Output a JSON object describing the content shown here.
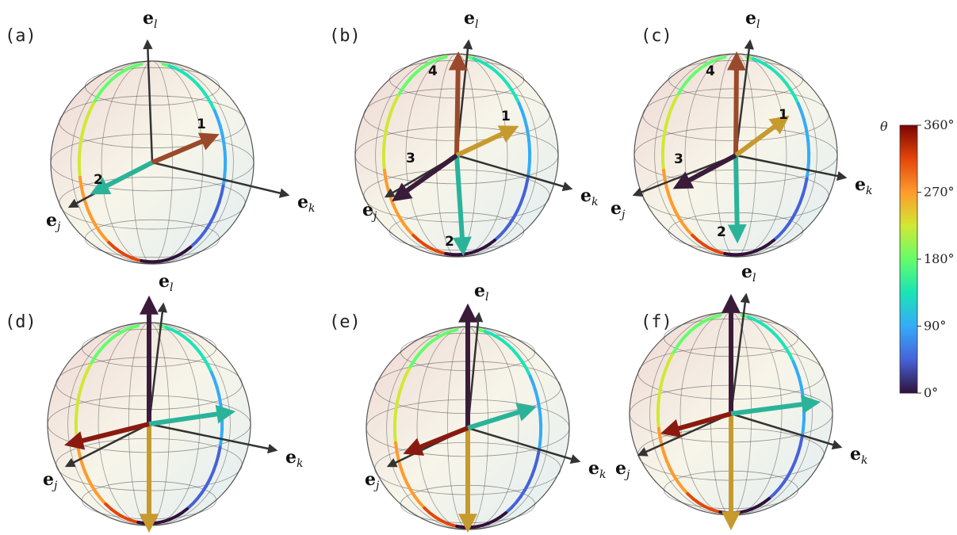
{
  "panels": [
    {
      "label": "(a)",
      "axis_l": {
        "letter": "e",
        "sub": "l"
      },
      "axis_j": {
        "letter": "e",
        "sub": "j"
      },
      "axis_k": {
        "letter": "e",
        "sub": "k"
      },
      "numbers": [
        "1",
        "2"
      ]
    },
    {
      "label": "(b)",
      "axis_l": {
        "letter": "e",
        "sub": "l"
      },
      "axis_j": {
        "letter": "e",
        "sub": "j"
      },
      "axis_k": {
        "letter": "e",
        "sub": "k"
      },
      "numbers": [
        "1",
        "2",
        "3",
        "4"
      ]
    },
    {
      "label": "(c)",
      "axis_l": {
        "letter": "e",
        "sub": "l"
      },
      "axis_j": {
        "letter": "e",
        "sub": "j"
      },
      "axis_k": {
        "letter": "e",
        "sub": "k"
      },
      "numbers": [
        "1",
        "2",
        "3",
        "4"
      ]
    },
    {
      "label": "(d)",
      "axis_l": {
        "letter": "e",
        "sub": "l"
      },
      "axis_j": {
        "letter": "e",
        "sub": "j"
      },
      "axis_k": {
        "letter": "e",
        "sub": "k"
      },
      "numbers": []
    },
    {
      "label": "(e)",
      "axis_l": {
        "letter": "e",
        "sub": "l"
      },
      "axis_j": {
        "letter": "e",
        "sub": "j"
      },
      "axis_k": {
        "letter": "e",
        "sub": "k"
      },
      "numbers": []
    },
    {
      "label": "(f)",
      "axis_l": {
        "letter": "e",
        "sub": "l"
      },
      "axis_j": {
        "letter": "e",
        "sub": "j"
      },
      "axis_k": {
        "letter": "e",
        "sub": "k"
      },
      "numbers": []
    }
  ],
  "colorbar": {
    "title": "θ",
    "ticks": [
      "360°",
      "270°",
      "180°",
      "90°",
      "0°"
    ],
    "colors": [
      "#7a0403",
      "#e4460a",
      "#fe9b2d",
      "#d1e834",
      "#64fd6a",
      "#1ae4b6",
      "#35abf8",
      "#4662d8",
      "#30123b"
    ]
  },
  "colors": {
    "arrow_dark": "#3a1c3a",
    "arrow_gold": "#c79a2e",
    "arrow_teal": "#2bb39a",
    "arrow_red": "#8a1a10",
    "arrow_brown": "#9a4a2a",
    "axis": "#333333"
  }
}
